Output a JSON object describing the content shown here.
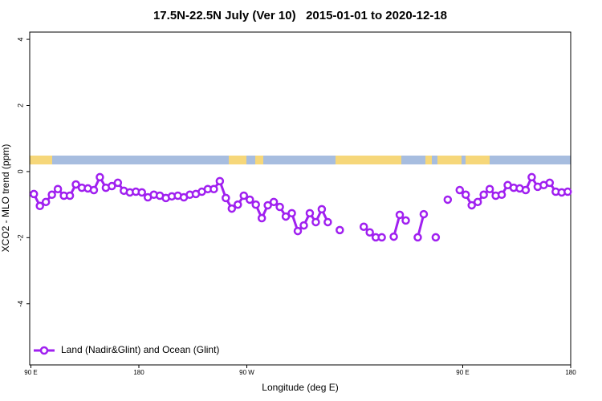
{
  "chart_data": {
    "type": "line",
    "title": "17.5N-22.5N July (Ver 10)   2015-01-01 to 2020-12-18",
    "x_label": "Longitude (deg E)",
    "y_label": "XCO2 - MLO trend (ppm)",
    "xlim": [
      89,
      540
    ],
    "ylim": [
      -5.85,
      4.22
    ],
    "xticks": [
      {
        "value": 90,
        "label": "90 E"
      },
      180,
      {
        "value": 270,
        "label": "90 W"
      },
      {
        "value": 450,
        "label": "90 E"
      },
      {
        "value": 540,
        "label": "180"
      }
    ],
    "yticks": [
      -4,
      -2,
      0,
      2,
      4
    ],
    "legend": "bottom-left",
    "x": [
      92.5,
      97.5,
      102.5,
      107.5,
      112.5,
      117.5,
      122.5,
      127.5,
      132.5,
      137.5,
      142.5,
      147.5,
      152.5,
      157.5,
      162.5,
      167.5,
      172.5,
      177.5,
      182.5,
      187.5,
      192.5,
      197.5,
      202.5,
      207.5,
      212.5,
      217.5,
      222.5,
      227.5,
      232.5,
      237.5,
      242.5,
      247.5,
      252.5,
      257.5,
      262.5,
      267.5,
      272.5,
      277.5,
      282.5,
      287.5,
      292.5,
      297.5,
      302.5,
      307.5,
      312.5,
      317.5,
      322.5,
      327.5,
      332.5,
      337.5,
      342.5,
      347.5,
      352.5,
      357.5,
      362.5,
      367.5,
      372.5,
      377.5,
      382.5,
      387.5,
      392.5,
      397.5,
      402.5,
      407.5,
      412.5,
      417.5,
      422.5,
      427.5,
      432.5,
      437.5,
      442.5,
      447.5,
      452.5,
      457.5,
      462.5,
      467.5,
      472.5,
      477.5,
      482.5,
      487.5,
      492.5,
      497.5,
      502.5,
      507.5,
      512.5,
      517.5,
      522.5,
      527.5,
      532.5,
      537.5
    ],
    "series": [
      {
        "name": "Land (Nadir&Glint) and Ocean (Glint)",
        "color": "#a020f0",
        "values": [
          -0.68,
          -1.04,
          -0.92,
          -0.7,
          -0.53,
          -0.73,
          -0.73,
          -0.39,
          -0.49,
          -0.51,
          -0.56,
          -0.17,
          -0.49,
          -0.44,
          -0.34,
          -0.58,
          -0.63,
          -0.61,
          -0.63,
          -0.78,
          -0.7,
          -0.73,
          -0.8,
          -0.75,
          -0.73,
          -0.78,
          -0.7,
          -0.68,
          -0.61,
          -0.53,
          -0.53,
          -0.29,
          -0.8,
          -1.12,
          -1.0,
          -0.73,
          -0.85,
          -1.0,
          -1.41,
          -1.02,
          -0.92,
          -1.07,
          -1.36,
          -1.26,
          -1.8,
          -1.63,
          -1.26,
          -1.53,
          -1.14,
          -1.53,
          null,
          -1.77,
          null,
          null,
          null,
          -1.67,
          -1.84,
          -1.99,
          -1.99,
          null,
          -1.97,
          -1.31,
          -1.48,
          null,
          -1.99,
          -1.29,
          null,
          -1.99,
          null,
          -0.85,
          null,
          -0.56,
          -0.7,
          -1.02,
          -0.92,
          -0.7,
          -0.53,
          -0.73,
          -0.7,
          -0.41,
          -0.49,
          -0.51,
          -0.56,
          -0.17,
          -0.46,
          -0.41,
          -0.34,
          -0.61,
          -0.63,
          -0.61
        ]
      }
    ]
  }
}
